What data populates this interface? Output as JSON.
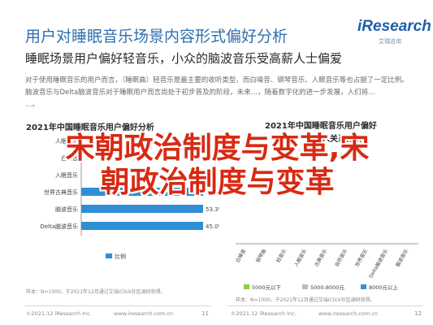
{
  "header": {
    "title": "用户对睡眠音乐场景内容形式偏好分析",
    "subtitle": "睡眠场景用户偏好轻音乐，小众的脑波音乐受高薪人士偏爱"
  },
  "logo": {
    "main": "iResearch",
    "sub": "艾瑞咨询"
  },
  "body_text": [
    "对于使用睡眠音乐的用户而言，（睡眠曲）轻音乐是最主要的收听类型，而白噪音、钢琴音乐、人眠音乐等也占据了一定比例。",
    "脑波音乐与Delta脑波音乐对于睡眠用户而言尚处于初步普及的阶段，未来…，随着数字化的进一步发展，人们将…",
    "…。"
  ],
  "overlay": {
    "line1": "宋朝政治制度与变革,宋",
    "line2": "朝政治制度与变革"
  },
  "left_panel": {
    "title": "2021年中国睡眠音乐用户偏好分析",
    "note": "样本：N=1000，于2021年12月通过艾瑞iClick社区调研获得。",
    "legend_label": "比例"
  },
  "right_panel": {
    "title_line1": "2021年中国睡眠音乐用户偏好",
    "title_line2": "入关系分析",
    "note": "样本：N=1000，于2021年12月通过艾瑞iClick社区调研获得。",
    "legend": [
      "5000元以下",
      "5000-8000元",
      "8000元以上"
    ]
  },
  "footer": {
    "left": "©2021.12 iResearch Inc.",
    "left_url": "www.iresearch.com.cn",
    "right": "©2021.12 iResearch Inc.",
    "right_url": "www.iresearch.com.cn",
    "page_left": "11",
    "page_right": "12"
  },
  "colors": {
    "accent": "#2f6fb0",
    "overlay_red": "#d82a13",
    "bar": "#2e8fd6",
    "green": "#8fce3e",
    "gray": "#bcbcbc",
    "blue": "#3b8fd8"
  },
  "chart_data": [
    {
      "type": "bar",
      "orientation": "horizontal",
      "title": "2021年中国睡眠音乐用户偏好分析",
      "categories": [
        "人眠音乐",
        "白噪音",
        "入眠音乐",
        "世界古典音乐",
        "脑波音乐",
        "Delta脑波音乐"
      ],
      "values": [
        null,
        null,
        null,
        57.9,
        53.3,
        45.0
      ],
      "value_labels": [
        "",
        "",
        "",
        "57.9%",
        "53.3%",
        "45.0%"
      ],
      "xlim": [
        0,
        100
      ],
      "legend": [
        "比例"
      ]
    },
    {
      "type": "bar",
      "title": "2021年中国睡眠音乐用户偏好入关系分析",
      "categories": [
        "白噪音",
        "钢琴曲",
        "轻音乐",
        "入眠音乐",
        "古典音乐",
        "自然音乐",
        "世界音乐",
        "Delta脑波音乐",
        "脑波音乐"
      ],
      "series": [
        {
          "name": "5000元以下",
          "values": [
            null,
            null,
            null,
            null,
            null,
            null,
            null,
            null,
            null
          ]
        },
        {
          "name": "5000-8000元",
          "values": [
            null,
            null,
            null,
            null,
            null,
            null,
            null,
            null,
            null
          ]
        },
        {
          "name": "8000元以上",
          "values": [
            null,
            null,
            null,
            null,
            null,
            null,
            null,
            null,
            null
          ]
        }
      ],
      "legend": [
        "5000元以下",
        "5000-8000元",
        "8000元以上"
      ]
    }
  ]
}
